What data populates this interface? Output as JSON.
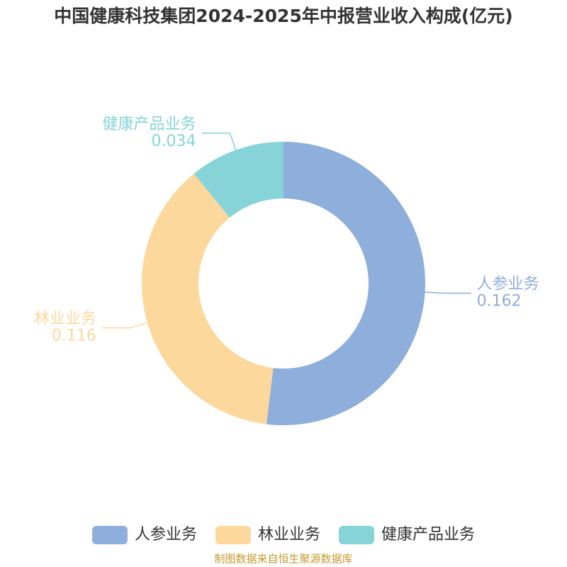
{
  "chart_data": {
    "type": "pie",
    "title": "中国健康科技集团2024-2025年中报营业收入构成(亿元)",
    "categories": [
      "人参业务",
      "林业业务",
      "健康产品业务"
    ],
    "values": [
      0.162,
      0.116,
      0.034
    ],
    "colors": [
      "#8eaedb",
      "#fdd89d",
      "#86d4d8"
    ],
    "legend": "bottom",
    "source": "制图数据来自恒生聚源数据库"
  }
}
